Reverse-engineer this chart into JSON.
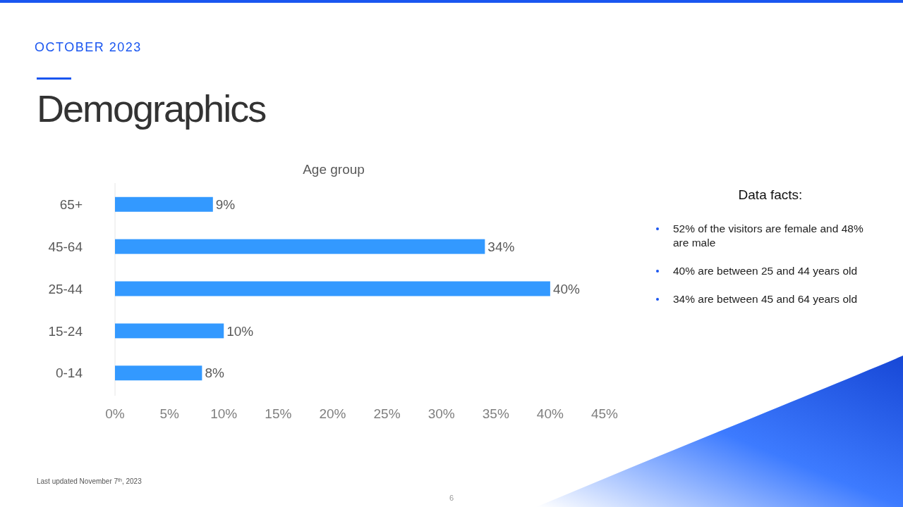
{
  "chart_data": {
    "type": "bar",
    "orientation": "horizontal",
    "title": "Demographics",
    "subtitle": "Age group",
    "categories": [
      "65+",
      "45-64",
      "25-44",
      "15-24",
      "0-14"
    ],
    "values": [
      9,
      34,
      40,
      10,
      8
    ],
    "value_labels": [
      "9%",
      "34%",
      "40%",
      "10%",
      "8%"
    ],
    "color": "#3399ff",
    "xlim": [
      0,
      45
    ],
    "xticks": [
      {
        "value": 0,
        "label": "0%"
      },
      {
        "value": 5,
        "label": "5%"
      },
      {
        "value": 10,
        "label": "10%"
      },
      {
        "value": 15,
        "label": "15%"
      },
      {
        "value": 20,
        "label": "20%"
      },
      {
        "value": 25,
        "label": "25%"
      },
      {
        "value": 30,
        "label": "30%"
      },
      {
        "value": 35,
        "label": "35%"
      },
      {
        "value": 40,
        "label": "40%"
      },
      {
        "value": 45,
        "label": "45%"
      }
    ],
    "grid": false,
    "annotations": [
      "OCTOBER 2023",
      "Data facts:",
      "52% of the visitors are female and 48% are male",
      "40% are between 25 and 44 years old",
      "34% are between 45 and 64 years old",
      "Last updated November 7$^{th}$, 2023",
      "6"
    ]
  }
}
